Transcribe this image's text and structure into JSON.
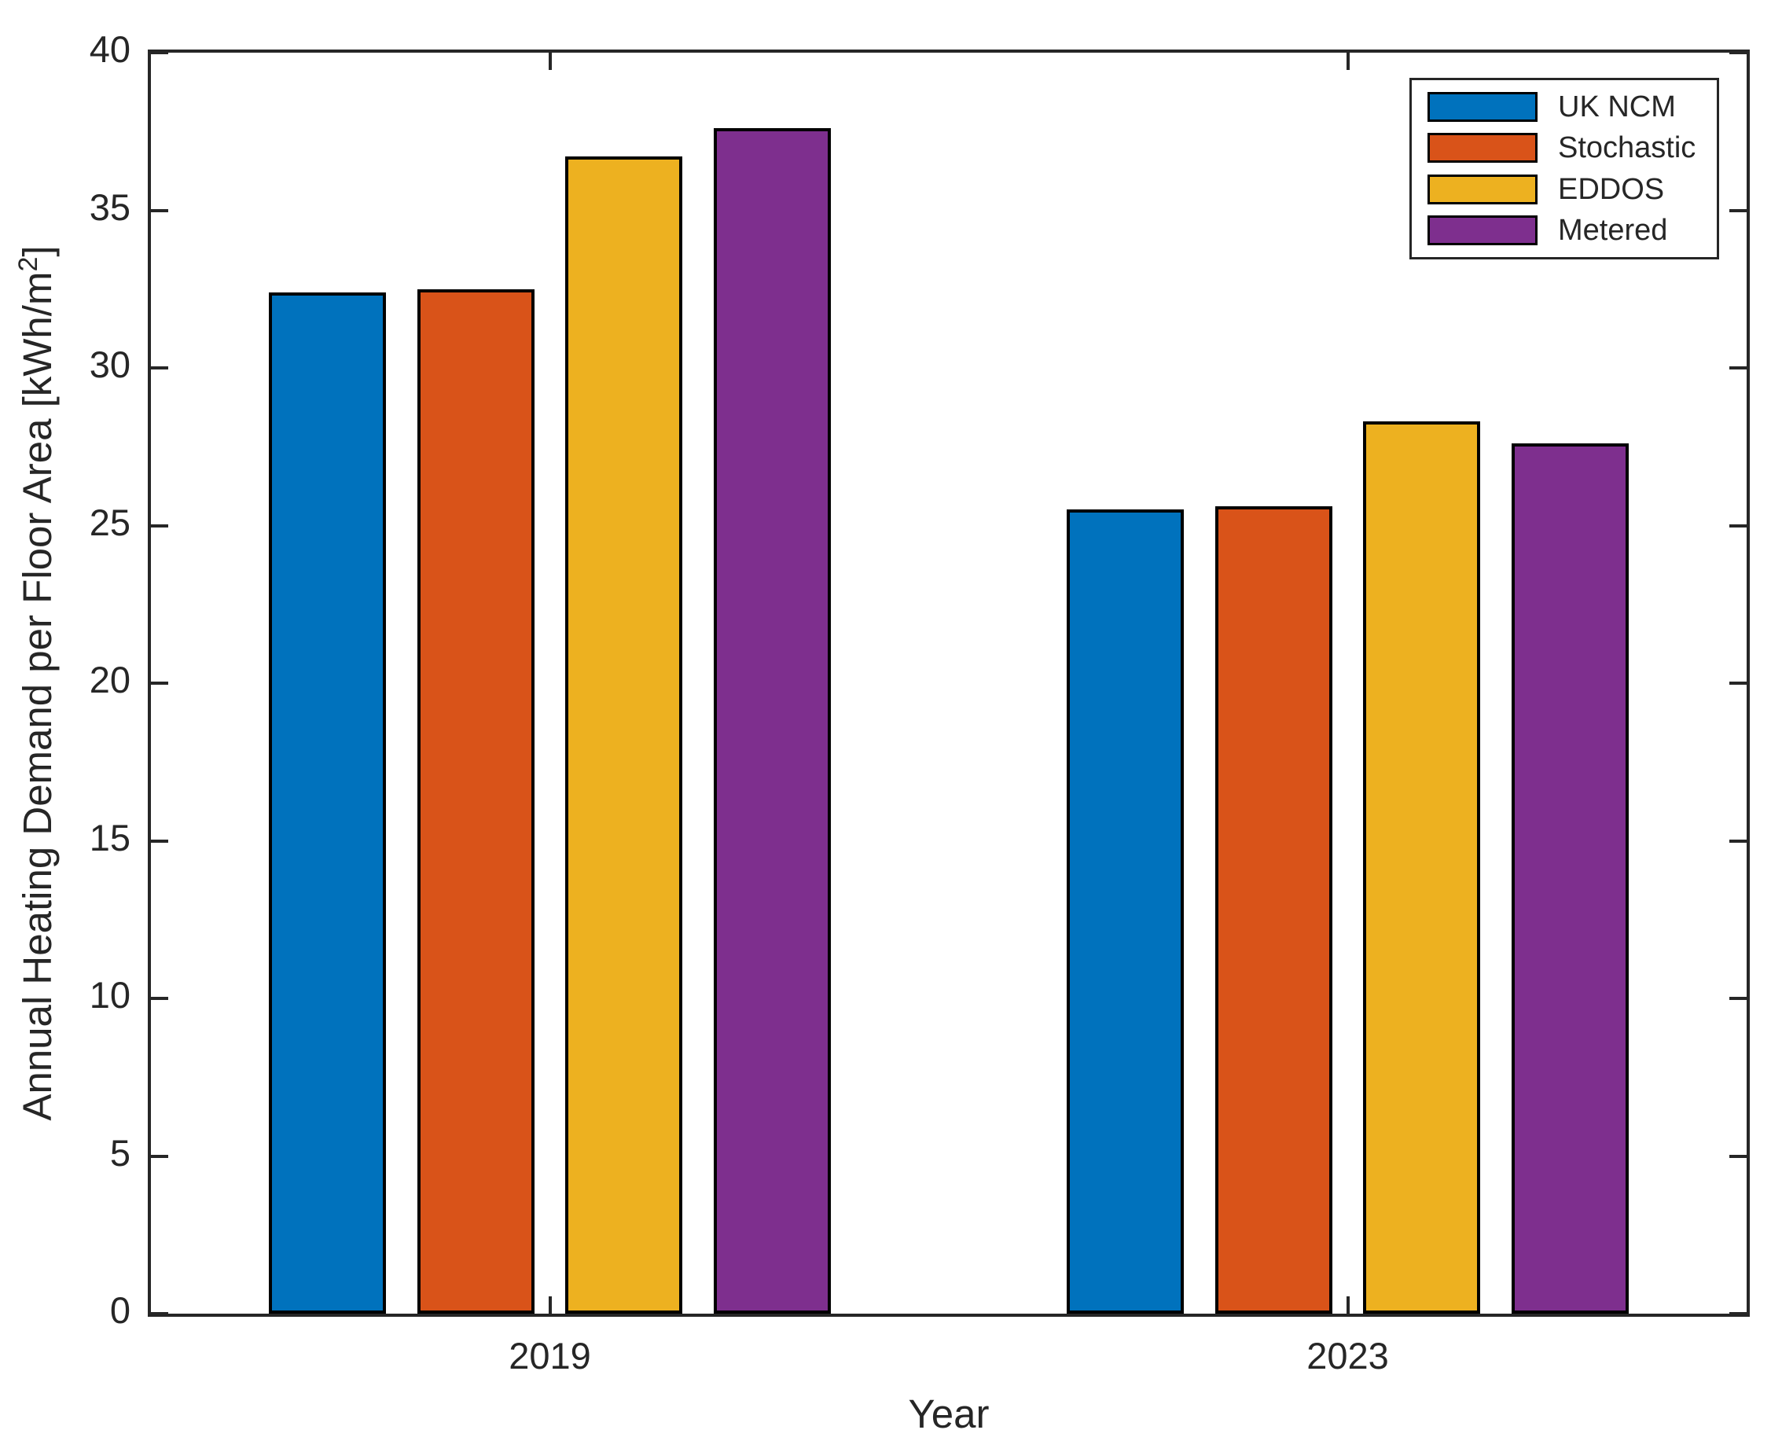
{
  "figure": {
    "background": "#ffffff",
    "axis_color": "#262626",
    "text_color": "#262626",
    "bar_edge_color": "#000000"
  },
  "chart_data": {
    "type": "bar",
    "title": "",
    "xlabel": "Year",
    "ylabel": "Annual Heating Demand per Floor Area [kWh/m2]",
    "ylabel_parts": {
      "pre": "Annual Heating Demand per Floor Area [kWh/m",
      "sup": "2",
      "post": "]"
    },
    "categories": [
      "2019",
      "2023"
    ],
    "series": [
      {
        "name": "UK NCM",
        "color": "#0072BD",
        "values": [
          32.4,
          25.5
        ]
      },
      {
        "name": "Stochastic",
        "color": "#D95319",
        "values": [
          32.5,
          25.6
        ]
      },
      {
        "name": "EDDOS",
        "color": "#EDB120",
        "values": [
          36.7,
          28.3
        ]
      },
      {
        "name": "Metered",
        "color": "#7E2F8E",
        "values": [
          37.6,
          27.6
        ]
      }
    ],
    "ylim": [
      0,
      40
    ],
    "yticks": [
      0,
      5,
      10,
      15,
      20,
      25,
      30,
      35,
      40
    ],
    "grid": false,
    "legend_position": "top-right"
  }
}
